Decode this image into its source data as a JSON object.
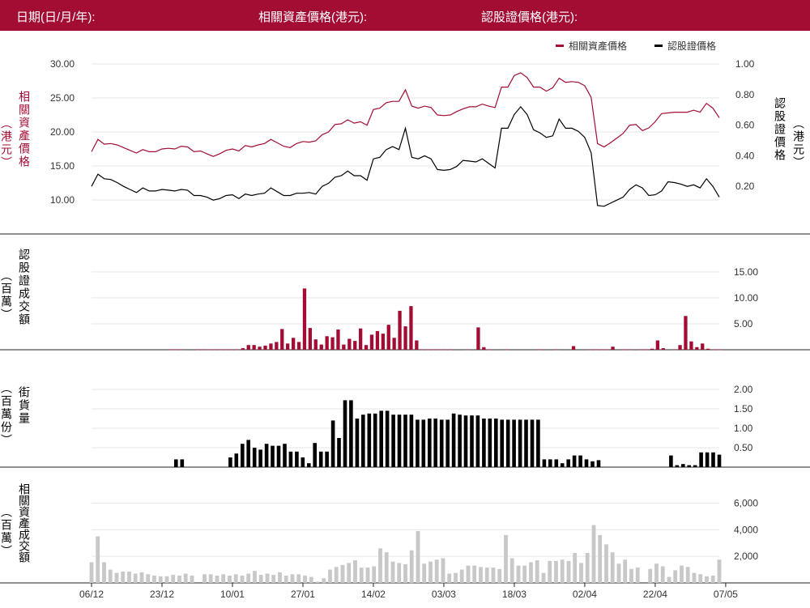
{
  "header": {
    "date_label": "日期(日/月/年):",
    "underlying_label": "相關資產價格(港元):",
    "warrant_label": "認股證價格(港元):"
  },
  "colors": {
    "brand": "#a30d34",
    "warrant": "#000000",
    "turnover": "#c8c8c8"
  },
  "labels": {
    "price_left_unit": "（港元）",
    "price_left_title": "相關資產價格",
    "price_right_title": "認股證價格",
    "price_right_unit": "（港元）",
    "wvol_title": "認股證成交額",
    "wvol_unit": "（百萬）",
    "os_unit": "（百萬份）",
    "os_title": "街貨量",
    "uvol_title": "相關資產成交額",
    "uvol_unit": "（百萬）"
  },
  "legend": [
    {
      "name": "相關資產價格",
      "color": "#a30d34"
    },
    {
      "name": "認股證價格",
      "color": "#000000"
    }
  ],
  "chart_data": [
    {
      "type": "line",
      "title": "",
      "x_ticks": [
        "06/12",
        "23/12",
        "10/01",
        "27/01",
        "14/02",
        "03/03",
        "18/03",
        "02/04",
        "22/04",
        "07/05"
      ],
      "x_tick_index": [
        0,
        11,
        22,
        33,
        44,
        55,
        66,
        77,
        88,
        99
      ],
      "series": [
        {
          "name": "相關資產價格",
          "axis": "left",
          "values": [
            17.1,
            18.9,
            18.2,
            18.3,
            18.1,
            17.7,
            17.3,
            16.9,
            17.4,
            17.1,
            17.1,
            17.5,
            17.6,
            17.5,
            17.9,
            17.8,
            17.1,
            17.2,
            16.8,
            16.4,
            16.8,
            17.3,
            17.5,
            17.2,
            18.0,
            17.8,
            18.1,
            18.3,
            18.9,
            18.4,
            17.9,
            17.7,
            18.3,
            18.6,
            18.5,
            18.7,
            19.6,
            20.0,
            21.1,
            21.2,
            21.8,
            21.3,
            21.5,
            21.0,
            23.3,
            23.5,
            24.3,
            24.5,
            24.5,
            26.2,
            23.8,
            23.5,
            23.8,
            23.6,
            22.5,
            22.4,
            22.5,
            23.0,
            23.4,
            23.7,
            23.7,
            24.1,
            23.8,
            23.6,
            26.6,
            26.6,
            28.3,
            28.7,
            28.0,
            26.6,
            26.6,
            26.0,
            26.5,
            27.9,
            27.3,
            27.4,
            27.3,
            26.8,
            25.1,
            18.3,
            17.8,
            18.4,
            19.1,
            19.8,
            21.0,
            21.1,
            20.2,
            20.6,
            21.5,
            22.7,
            22.8,
            22.9,
            22.9,
            22.9,
            23.2,
            22.9,
            24.2,
            23.5,
            22.1
          ]
        },
        {
          "name": "認股證價格",
          "axis": "right",
          "values": [
            0.2,
            0.28,
            0.25,
            0.245,
            0.225,
            0.2,
            0.18,
            0.16,
            0.19,
            0.17,
            0.17,
            0.18,
            0.175,
            0.17,
            0.18,
            0.175,
            0.14,
            0.14,
            0.13,
            0.11,
            0.12,
            0.14,
            0.145,
            0.12,
            0.15,
            0.14,
            0.15,
            0.155,
            0.19,
            0.165,
            0.14,
            0.14,
            0.155,
            0.155,
            0.16,
            0.15,
            0.2,
            0.22,
            0.26,
            0.27,
            0.3,
            0.27,
            0.27,
            0.24,
            0.38,
            0.39,
            0.44,
            0.46,
            0.44,
            0.58,
            0.39,
            0.38,
            0.4,
            0.38,
            0.31,
            0.305,
            0.31,
            0.33,
            0.37,
            0.365,
            0.36,
            0.38,
            0.35,
            0.32,
            0.58,
            0.58,
            0.67,
            0.72,
            0.67,
            0.57,
            0.55,
            0.52,
            0.53,
            0.64,
            0.58,
            0.58,
            0.56,
            0.52,
            0.42,
            0.075,
            0.07,
            0.09,
            0.11,
            0.13,
            0.18,
            0.21,
            0.19,
            0.14,
            0.145,
            0.17,
            0.23,
            0.225,
            0.215,
            0.2,
            0.21,
            0.19,
            0.25,
            0.2,
            0.13
          ]
        }
      ],
      "left_ticks": [
        "30.00",
        "25.00",
        "20.00",
        "15.00",
        "10.00"
      ],
      "right_ticks": [
        "1.00",
        "0.80",
        "0.60",
        "0.40",
        "0.20"
      ],
      "ylim_left": [
        7.5,
        30
      ],
      "ylim_right": [
        0.0,
        1.0
      ]
    },
    {
      "type": "bar",
      "title": "",
      "series": [
        {
          "name": "",
          "values": [
            0,
            0,
            0,
            0,
            0,
            0,
            0,
            0,
            0,
            0,
            0,
            0,
            0,
            0,
            0.1,
            0.1,
            0.1,
            0,
            0,
            0.1,
            0.1,
            0.1,
            0.1,
            0.1,
            0.1,
            0.1,
            0.1,
            0.3,
            0.9,
            0.9,
            0.6,
            0.8,
            1.2,
            1.5,
            4.0,
            1.2,
            2.3,
            1.5,
            11.8,
            4.2,
            2.0,
            1.0,
            2.6,
            2.4,
            3.9,
            1.0,
            2.1,
            1.7,
            4.1,
            0.9,
            2.9,
            3.6,
            3.1,
            4.8,
            2.3,
            7.5,
            4.5,
            8.4,
            1.8,
            0.1,
            0.1,
            0.1,
            0.1,
            0.1,
            0.1,
            0,
            0,
            0.1,
            0,
            4.3,
            0.5,
            0.1,
            0,
            0,
            0.1,
            0,
            0,
            0,
            0,
            0,
            0.1,
            0,
            0,
            0.1,
            0,
            0,
            0.7,
            0,
            0,
            0.1,
            0.1,
            0.1,
            0.1,
            0.6,
            0,
            0.1,
            0.1,
            0,
            0.1,
            0.1,
            0.2,
            1.8,
            0.3,
            0,
            0.1,
            0.9,
            6.5,
            1.6,
            0.5,
            1.2,
            0.2,
            0.1,
            0.1
          ]
        }
      ],
      "ticks": [
        "15.00",
        "10.00",
        "5.00"
      ],
      "ylim": [
        0,
        17
      ]
    },
    {
      "type": "bar",
      "title": "",
      "series": [
        {
          "name": "",
          "values": [
            0,
            0,
            0,
            0,
            0,
            0,
            0,
            0,
            0,
            0,
            0,
            0,
            0,
            0,
            0.2,
            0.2,
            0,
            0,
            0,
            0,
            0,
            0,
            0,
            0.25,
            0.35,
            0.6,
            0.7,
            0.5,
            0.45,
            0.6,
            0.55,
            0.55,
            0.6,
            0.4,
            0.4,
            0.25,
            0.1,
            0.62,
            0.4,
            0.4,
            1.2,
            0.75,
            1.72,
            1.72,
            1.25,
            1.35,
            1.38,
            1.38,
            1.45,
            1.45,
            1.35,
            1.35,
            1.35,
            1.35,
            1.22,
            1.22,
            1.25,
            1.25,
            1.22,
            1.22,
            1.38,
            1.35,
            1.33,
            1.33,
            1.33,
            1.25,
            1.25,
            1.25,
            1.22,
            1.22,
            1.22,
            1.22,
            1.22,
            1.22,
            1.22,
            0.2,
            0.2,
            0.2,
            0.1,
            0.2,
            0.3,
            0.3,
            0.2,
            0.15,
            0.18,
            0,
            0,
            0,
            0,
            0,
            0,
            0,
            0,
            0,
            0,
            0,
            0.3,
            0.05,
            0.08,
            0.05,
            0.05,
            0.38,
            0.38,
            0.38,
            0.32
          ]
        }
      ],
      "ticks": [
        "2.00",
        "1.50",
        "1.00",
        "0.50"
      ],
      "ylim": [
        0,
        2.25
      ]
    },
    {
      "type": "bar",
      "title": "",
      "series": [
        {
          "name": "",
          "values": [
            1550,
            3500,
            1550,
            1000,
            750,
            850,
            850,
            700,
            800,
            650,
            550,
            500,
            500,
            600,
            550,
            700,
            550,
            0,
            650,
            650,
            550,
            650,
            550,
            650,
            550,
            700,
            900,
            600,
            700,
            600,
            800,
            550,
            650,
            650,
            550,
            450,
            100,
            350,
            1000,
            1200,
            1350,
            1500,
            1700,
            1150,
            1150,
            1250,
            2600,
            2300,
            1600,
            1500,
            1400,
            2450,
            3900,
            1450,
            1600,
            1750,
            1850,
            700,
            750,
            1000,
            1300,
            1300,
            1200,
            1150,
            1150,
            1050,
            3600,
            1850,
            1300,
            1300,
            1550,
            1700,
            750,
            1650,
            1650,
            1750,
            1650,
            2250,
            1500,
            2250,
            4350,
            3600,
            2900,
            2300,
            1450,
            1750,
            1050,
            1150,
            0,
            1050,
            1450,
            1250,
            450,
            950,
            1300,
            1200,
            750,
            650,
            500,
            550,
            1750
          ]
        }
      ],
      "ticks": [
        "6,000",
        "4,000",
        "2,000"
      ],
      "ylim": [
        0,
        7000
      ]
    }
  ]
}
